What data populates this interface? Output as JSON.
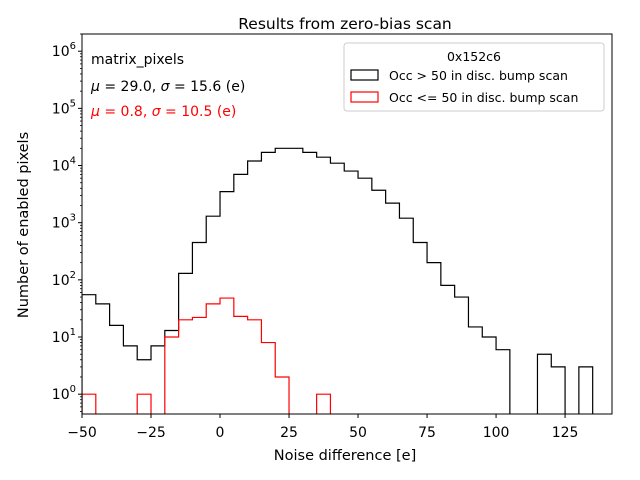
{
  "chart_data": {
    "type": "histogram",
    "title": "Results from zero-bias scan",
    "xlabel": "Noise difference [e]",
    "ylabel": "Number of enabled pixels",
    "xlim": [
      -50,
      142
    ],
    "ylim": [
      0.45,
      2000000
    ],
    "yscale": "log",
    "grid": false,
    "x_ticks": [
      -50,
      -25,
      0,
      25,
      50,
      75,
      100,
      125
    ],
    "y_ticks": [
      {
        "value": 1,
        "base": "10",
        "exp": "0"
      },
      {
        "value": 10,
        "base": "10",
        "exp": "1"
      },
      {
        "value": 100,
        "base": "10",
        "exp": "2"
      },
      {
        "value": 1000,
        "base": "10",
        "exp": "3"
      },
      {
        "value": 10000,
        "base": "10",
        "exp": "4"
      },
      {
        "value": 100000,
        "base": "10",
        "exp": "5"
      },
      {
        "value": 1000000,
        "base": "10",
        "exp": "6"
      }
    ],
    "bin_edges": [
      -50,
      -45,
      -40,
      -35,
      -30,
      -25,
      -20,
      -15,
      -10,
      -5,
      0,
      5,
      10,
      15,
      20,
      25,
      30,
      35,
      40,
      45,
      50,
      55,
      60,
      65,
      70,
      75,
      80,
      85,
      90,
      95,
      100,
      105,
      110,
      115,
      120,
      125,
      130,
      135,
      140
    ],
    "series": [
      {
        "name": "Occ > 50 in disc. bump scan",
        "color": "#000000",
        "counts": [
          55,
          38,
          16,
          7,
          4,
          7,
          13,
          130,
          450,
          1300,
          3500,
          7000,
          12000,
          17000,
          20000,
          20000,
          17000,
          14000,
          11000,
          8000,
          6000,
          3700,
          2200,
          1200,
          450,
          200,
          80,
          50,
          15,
          10,
          6,
          0,
          0,
          5,
          3,
          0,
          3,
          0
        ]
      },
      {
        "name": "Occ <= 50 in disc. bump scan",
        "color": "#ff0000",
        "counts": [
          1,
          0,
          0,
          0,
          1,
          0,
          10,
          20,
          22,
          38,
          48,
          23,
          20,
          8,
          2,
          0,
          0,
          1,
          0,
          0,
          0,
          0,
          0,
          0,
          0,
          0,
          0,
          0,
          0,
          0,
          0,
          0,
          0,
          0,
          0,
          0,
          0,
          0
        ]
      }
    ],
    "legend": {
      "title": "0x152c6",
      "location": "upper right",
      "entries": [
        "Occ > 50 in disc. bump scan",
        "Occ <= 50 in disc. bump scan"
      ]
    },
    "annotations": {
      "name": "matrix_pixels",
      "stats": [
        {
          "mu": "29.0",
          "sigma": "15.6",
          "unit": "(e)",
          "color": "#000000"
        },
        {
          "mu": "0.8",
          "sigma": "10.5",
          "unit": "(e)",
          "color": "#ff0000"
        }
      ]
    }
  }
}
